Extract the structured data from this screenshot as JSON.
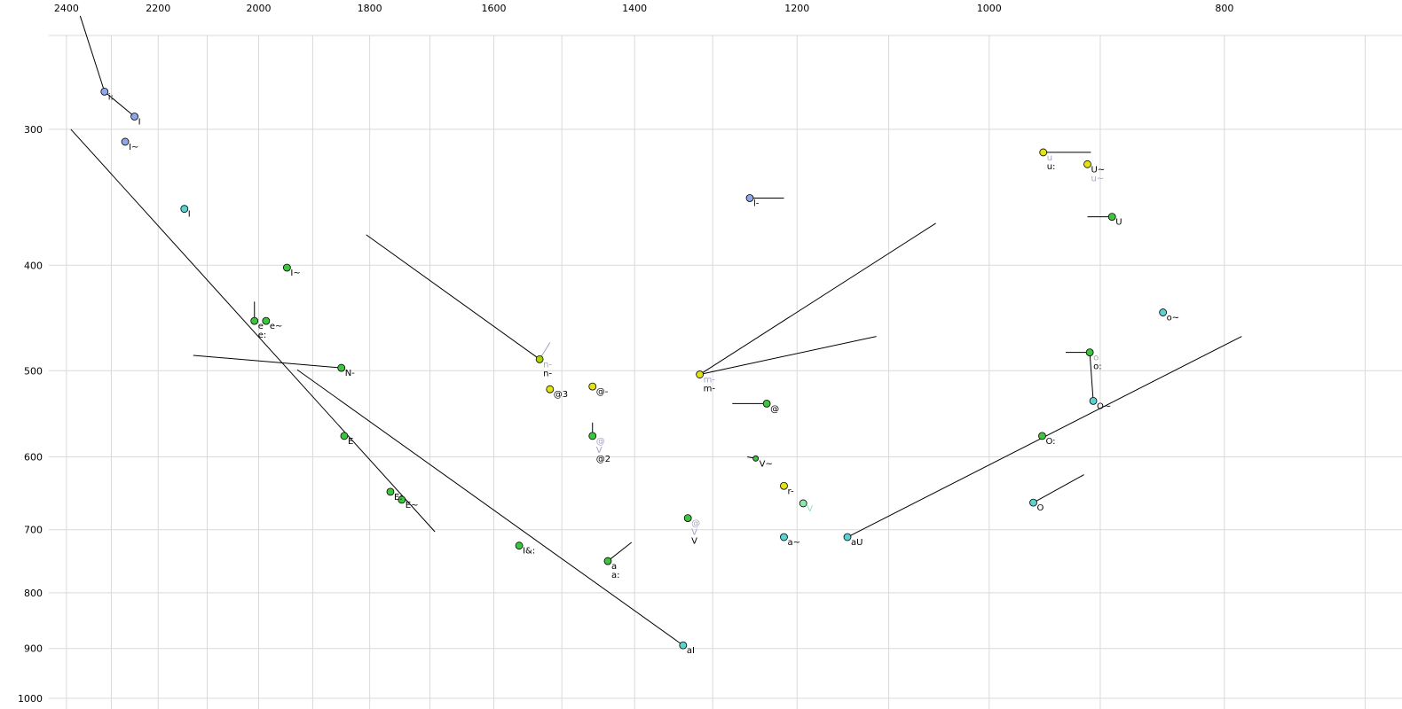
{
  "chart_data": {
    "type": "scatter",
    "title": "",
    "xlabel": "",
    "ylabel": "",
    "x_axis": {
      "scale": "log",
      "direction": "reversed-left-to-right",
      "tick_labels": [
        2400,
        2200,
        2000,
        1800,
        1600,
        1400,
        1200,
        1000,
        800
      ],
      "grid_min": 700,
      "grid_max": 2400,
      "grid_step": 100
    },
    "y_axis": {
      "scale": "log",
      "direction": "increasing-downward",
      "tick_labels": [
        300,
        400,
        500,
        600,
        700,
        800,
        900,
        1000
      ],
      "grid_min": 300,
      "grid_max": 1000,
      "grid_step": 100
    },
    "colors": {
      "blue": "#91a6e6",
      "cyan": "#5ad2d2",
      "green": "#3dc63d",
      "yellowgreen": "#a9d400",
      "yellow": "#e3e314",
      "palegreen": "#8fe6ae",
      "grey": "#a3a3c2",
      "black": "#000000"
    },
    "points": [
      {
        "id": "i-long",
        "f2": 2315,
        "f1": 277,
        "color": "blue",
        "labels": [
          {
            "t": "i:",
            "c": "black"
          }
        ]
      },
      {
        "id": "I-blue",
        "f2": 2250,
        "f1": 292,
        "color": "blue",
        "labels": [
          {
            "t": "I",
            "c": "black"
          }
        ]
      },
      {
        "id": "I-nasal-blue",
        "f2": 2270,
        "f1": 308,
        "color": "blue",
        "labels": [
          {
            "t": "I~",
            "c": "black"
          }
        ]
      },
      {
        "id": "I-cyan",
        "f2": 2146,
        "f1": 355,
        "color": "cyan",
        "labels": [
          {
            "t": "I",
            "c": "black"
          }
        ]
      },
      {
        "id": "I-nasal-green",
        "f2": 1947,
        "f1": 402,
        "color": "green",
        "labels": [
          {
            "t": "I~",
            "c": "black"
          }
        ]
      },
      {
        "id": "e",
        "f2": 2008,
        "f1": 450,
        "color": "green",
        "labels": [
          {
            "t": "e",
            "c": "black"
          },
          {
            "t": "e:",
            "c": "black"
          }
        ]
      },
      {
        "id": "e-nasal",
        "f2": 1986,
        "f1": 450,
        "color": "green",
        "labels": [
          {
            "t": "e~",
            "c": "black"
          }
        ]
      },
      {
        "id": "N-",
        "f2": 1849,
        "f1": 497,
        "color": "green",
        "labels": [
          {
            "t": "N-",
            "c": "black"
          }
        ]
      },
      {
        "id": "E",
        "f2": 1844,
        "f1": 574,
        "color": "green",
        "labels": [
          {
            "t": "E",
            "c": "black"
          }
        ]
      },
      {
        "id": "E-long",
        "f2": 1765,
        "f1": 646,
        "color": "green",
        "labels": [
          {
            "t": "E:",
            "c": "black"
          }
        ]
      },
      {
        "id": "E-nasal",
        "f2": 1746,
        "f1": 657,
        "color": "green",
        "labels": [
          {
            "t": "E~",
            "c": "black"
          }
        ]
      },
      {
        "id": "n-",
        "f2": 1532,
        "f1": 488,
        "color": "yellowgreen",
        "labels": [
          {
            "t": "n-",
            "c": "grey"
          },
          {
            "t": "n-",
            "c": "black"
          }
        ]
      },
      {
        "id": "schwa3",
        "f2": 1517,
        "f1": 520,
        "color": "yellow",
        "labels": [
          {
            "t": "@3",
            "c": "black"
          }
        ]
      },
      {
        "id": "schwa-dash",
        "f2": 1457,
        "f1": 517,
        "color": "yellow",
        "labels": [
          {
            "t": "@-",
            "c": "black"
          }
        ]
      },
      {
        "id": "schwa2",
        "f2": 1457,
        "f1": 574,
        "color": "green",
        "labels": [
          {
            "t": "@",
            "c": "grey"
          },
          {
            "t": "V",
            "c": "grey"
          },
          {
            "t": "@2",
            "c": "black"
          }
        ]
      },
      {
        "id": "l-",
        "f2": 1255,
        "f1": 347,
        "color": "blue",
        "labels": [
          {
            "t": "l-",
            "c": "black"
          }
        ]
      },
      {
        "id": "m-",
        "f2": 1316,
        "f1": 504,
        "color": "yellow",
        "labels": [
          {
            "t": "m-",
            "c": "grey"
          },
          {
            "t": "m-",
            "c": "black"
          }
        ]
      },
      {
        "id": "schwa",
        "f2": 1235,
        "f1": 536,
        "color": "green",
        "labels": [
          {
            "t": "@",
            "c": "black"
          }
        ]
      },
      {
        "id": "V-nasal",
        "f2": 1248,
        "f1": 602,
        "color": "green",
        "r": 3,
        "labels": [
          {
            "t": "V~",
            "c": "black"
          }
        ]
      },
      {
        "id": "r-",
        "f2": 1215,
        "f1": 638,
        "color": "yellow",
        "labels": [
          {
            "t": "r-",
            "c": "black"
          }
        ]
      },
      {
        "id": "V-pale",
        "f2": 1193,
        "f1": 662,
        "color": "palegreen",
        "labels": [
          {
            "t": "V",
            "c": "palegreen"
          }
        ]
      },
      {
        "id": "V",
        "f2": 1331,
        "f1": 683,
        "color": "green",
        "labels": [
          {
            "t": "@",
            "c": "grey"
          },
          {
            "t": "V",
            "c": "grey"
          },
          {
            "t": "V",
            "c": "black"
          }
        ]
      },
      {
        "id": "a-nasal",
        "f2": 1215,
        "f1": 711,
        "color": "cyan",
        "labels": [
          {
            "t": "a~",
            "c": "black"
          }
        ]
      },
      {
        "id": "aU",
        "f2": 1144,
        "f1": 711,
        "color": "cyan",
        "labels": [
          {
            "t": "aU",
            "c": "black"
          }
        ]
      },
      {
        "id": "a",
        "f2": 1436,
        "f1": 748,
        "color": "green",
        "labels": [
          {
            "t": "a",
            "c": "black"
          },
          {
            "t": "a:",
            "c": "black"
          }
        ]
      },
      {
        "id": "I-amp-long",
        "f2": 1562,
        "f1": 724,
        "color": "green",
        "labels": [
          {
            "t": "I&:",
            "c": "black"
          }
        ]
      },
      {
        "id": "aI",
        "f2": 1337,
        "f1": 894,
        "color": "cyan",
        "labels": [
          {
            "t": "aI",
            "c": "black"
          }
        ]
      },
      {
        "id": "u-long",
        "f2": 950,
        "f1": 315,
        "color": "yellow",
        "labels": [
          {
            "t": "u",
            "c": "grey"
          },
          {
            "t": "u:",
            "c": "black"
          }
        ]
      },
      {
        "id": "U-nasal",
        "f2": 911,
        "f1": 323,
        "color": "yellow",
        "labels": [
          {
            "t": "U~",
            "c": "black"
          },
          {
            "t": "u~",
            "c": "grey"
          }
        ]
      },
      {
        "id": "U",
        "f2": 890,
        "f1": 361,
        "color": "green",
        "labels": [
          {
            "t": "U",
            "c": "black"
          }
        ]
      },
      {
        "id": "o-nasal",
        "f2": 848,
        "f1": 442,
        "color": "cyan",
        "labels": [
          {
            "t": "o~",
            "c": "black"
          }
        ]
      },
      {
        "id": "o-long",
        "f2": 909,
        "f1": 481,
        "color": "green",
        "labels": [
          {
            "t": "o",
            "c": "grey"
          },
          {
            "t": "o:",
            "c": "black"
          }
        ]
      },
      {
        "id": "O-nasal",
        "f2": 906,
        "f1": 533,
        "color": "cyan",
        "labels": [
          {
            "t": "O~",
            "c": "black"
          }
        ]
      },
      {
        "id": "O-long",
        "f2": 951,
        "f1": 574,
        "color": "green",
        "labels": [
          {
            "t": "O:",
            "c": "black"
          }
        ]
      },
      {
        "id": "O",
        "f2": 959,
        "f1": 661,
        "color": "cyan",
        "labels": [
          {
            "t": "O",
            "c": "black"
          }
        ]
      }
    ],
    "segments": [
      {
        "from": [
          2369,
          236
        ],
        "to": [
          2315,
          277
        ],
        "color": "black"
      },
      {
        "from": [
          2315,
          277
        ],
        "to": [
          2250,
          292
        ],
        "color": "black"
      },
      {
        "from": [
          2390,
          300
        ],
        "to": [
          1692,
          703
        ],
        "color": "black"
      },
      {
        "from": [
          2128,
          484
        ],
        "to": [
          1849,
          497
        ],
        "color": "black"
      },
      {
        "from": [
          1928,
          499
        ],
        "to": [
          1337,
          894
        ],
        "color": "black"
      },
      {
        "from": [
          1806,
          375
        ],
        "to": [
          1532,
          488
        ],
        "color": "black"
      },
      {
        "from": [
          1316,
          504
        ],
        "to": [
          1052,
          366
        ],
        "color": "black"
      },
      {
        "from": [
          1316,
          504
        ],
        "to": [
          1113,
          465
        ],
        "color": "black"
      },
      {
        "from": [
          1255,
          347
        ],
        "to": [
          1215,
          347
        ],
        "color": "black"
      },
      {
        "from": [
          1276,
          536
        ],
        "to": [
          1235,
          536
        ],
        "color": "black"
      },
      {
        "from": [
          950,
          315
        ],
        "to": [
          908,
          315
        ],
        "color": "black"
      },
      {
        "from": [
          911,
          361
        ],
        "to": [
          890,
          361
        ],
        "color": "black"
      },
      {
        "from": [
          930,
          481
        ],
        "to": [
          909,
          481
        ],
        "color": "black"
      },
      {
        "from": [
          909,
          481
        ],
        "to": [
          906,
          533
        ],
        "color": "black"
      },
      {
        "from": [
          914,
          623
        ],
        "to": [
          959,
          661
        ],
        "color": "black"
      },
      {
        "from": [
          1144,
          711
        ],
        "to": [
          787,
          465
        ],
        "color": "black"
      },
      {
        "from": [
          2008,
          432
        ],
        "to": [
          2008,
          450
        ],
        "color": "black"
      },
      {
        "from": [
          1457,
          558
        ],
        "to": [
          1457,
          574
        ],
        "color": "black"
      },
      {
        "from": [
          1404,
          719
        ],
        "to": [
          1436,
          748
        ],
        "color": "black"
      },
      {
        "from": [
          1532,
          488
        ],
        "to": [
          1517,
          471
        ],
        "color": "grey"
      },
      {
        "from": [
          1258,
          600
        ],
        "to": [
          1248,
          602
        ],
        "color": "black"
      }
    ]
  }
}
